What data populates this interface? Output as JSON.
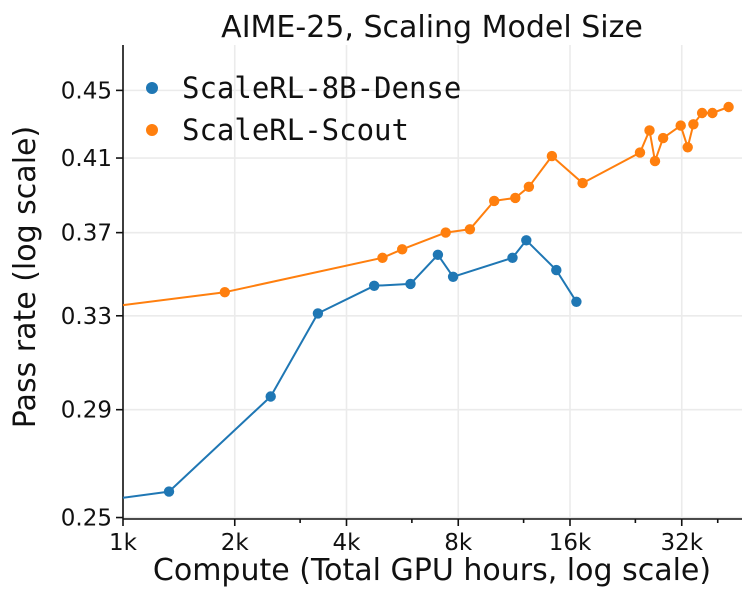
{
  "chart_data": {
    "type": "line",
    "title": "AIME-25, Scaling Model Size",
    "xlabel": "Compute (Total GPU hours, log scale)",
    "ylabel": "Pass rate (log scale)",
    "x_scale": "log2",
    "y_scale": "log",
    "xlim": [
      1000,
      46500
    ],
    "ylim": [
      0.2495,
      0.479
    ],
    "x_ticks": [
      {
        "value": 1000,
        "label": "1k"
      },
      {
        "value": 2000,
        "label": "2k"
      },
      {
        "value": 4000,
        "label": "4k"
      },
      {
        "value": 8000,
        "label": "8k"
      },
      {
        "value": 16000,
        "label": "16k"
      },
      {
        "value": 32000,
        "label": "32k"
      }
    ],
    "y_ticks": [
      {
        "value": 0.25,
        "label": "0.25"
      },
      {
        "value": 0.29,
        "label": "0.29"
      },
      {
        "value": 0.33,
        "label": "0.33"
      },
      {
        "value": 0.37,
        "label": "0.37"
      },
      {
        "value": 0.41,
        "label": "0.41"
      },
      {
        "value": 0.45,
        "label": "0.45"
      }
    ],
    "grid": true,
    "legend_position": "top-left",
    "series": [
      {
        "name": "ScaleRL-8B-Dense",
        "color": "#1f77b4",
        "line_start": [
          1000,
          0.2569
        ],
        "points": [
          [
            1330,
            0.2591
          ],
          [
            2500,
            0.2953
          ],
          [
            3350,
            0.3311
          ],
          [
            4750,
            0.3439
          ],
          [
            5950,
            0.3448
          ],
          [
            7050,
            0.3589
          ],
          [
            7750,
            0.3482
          ],
          [
            11200,
            0.3574
          ],
          [
            12200,
            0.3661
          ],
          [
            14700,
            0.3514
          ],
          [
            16650,
            0.3364
          ]
        ]
      },
      {
        "name": "ScaleRL-Scout",
        "color": "#ff7f0e",
        "line_start": [
          1000,
          0.3349
        ],
        "points": [
          [
            1880,
            0.3409
          ],
          [
            5000,
            0.3574
          ],
          [
            5650,
            0.3616
          ],
          [
            7400,
            0.37
          ],
          [
            8600,
            0.3717
          ],
          [
            10000,
            0.3865
          ],
          [
            11400,
            0.3881
          ],
          [
            12400,
            0.3941
          ],
          [
            14300,
            0.4111
          ],
          [
            17300,
            0.3961
          ],
          [
            24700,
            0.4131
          ],
          [
            26200,
            0.4259
          ],
          [
            27100,
            0.4083
          ],
          [
            28500,
            0.4214
          ],
          [
            31800,
            0.4287
          ],
          [
            33200,
            0.4161
          ],
          [
            34400,
            0.4295
          ],
          [
            36300,
            0.4362
          ],
          [
            38700,
            0.4362
          ],
          [
            42800,
            0.4398
          ]
        ]
      }
    ]
  }
}
